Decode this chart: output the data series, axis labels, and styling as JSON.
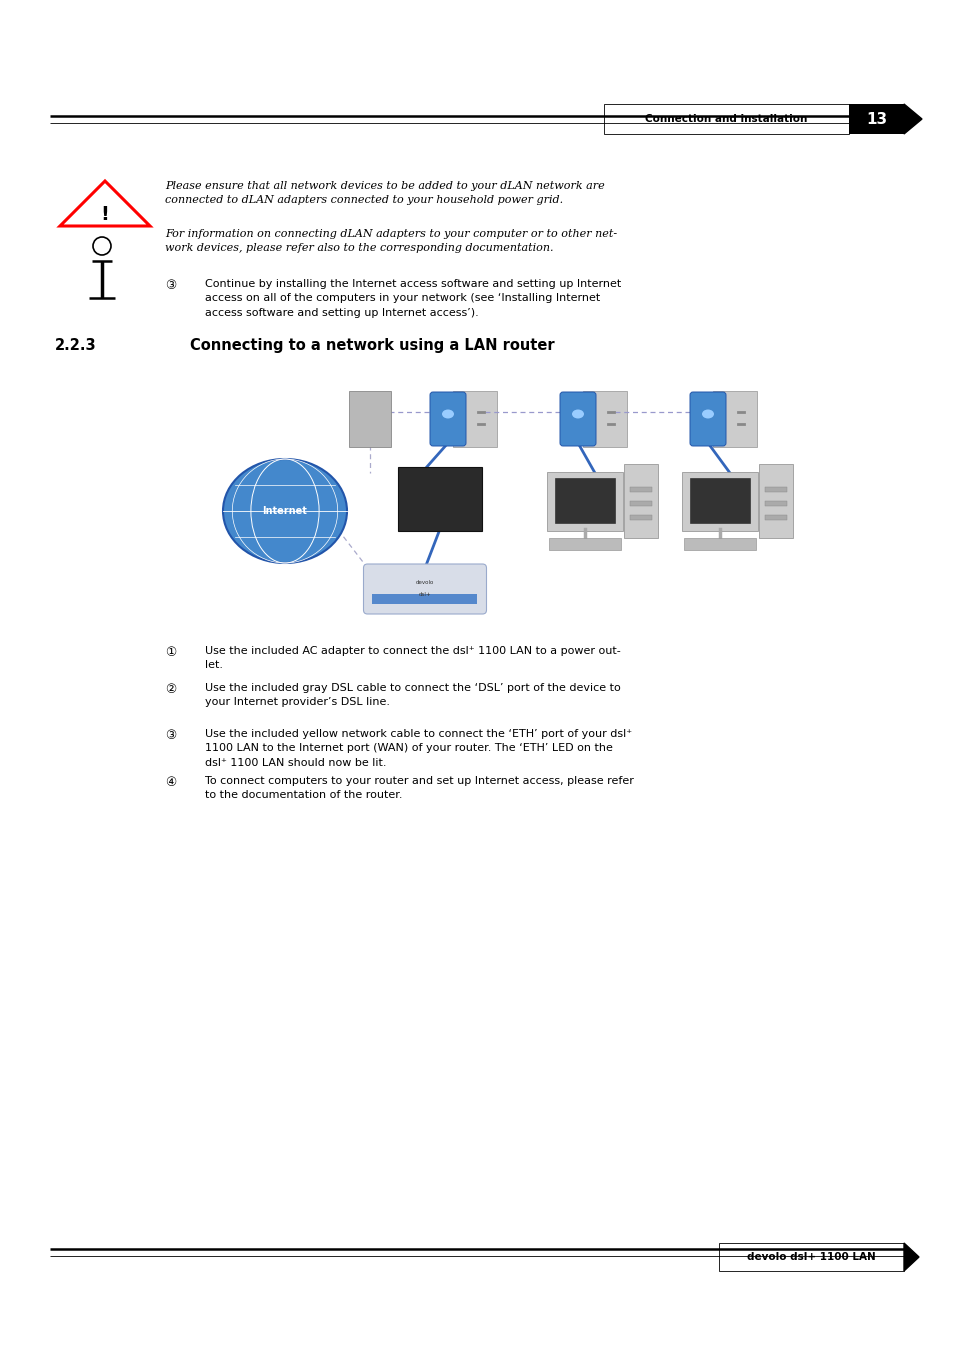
{
  "bg_color": "#ffffff",
  "page_width": 9.54,
  "page_height": 13.51,
  "header_text": "Connection and installation",
  "header_page": "13",
  "footer_text": "devolo dsl+ 1100 LAN",
  "section_num": "2.2.3",
  "section_title": "Connecting to a network using a LAN router",
  "warning_text": "Please ensure that all network devices to be added to your dLAN network are\nconnected to dLAN adapters connected to your household power grid.",
  "info_text": "For information on connecting dLAN adapters to your computer or to other net-\nwork devices, please refer also to the corresponding documentation.",
  "step7_text": "Continue by installing the Internet access software and setting up Internet\naccess on all of the computers in your network (see ‘Installing Internet\naccess software and setting up Internet access’).",
  "step1_text": "Use the included AC adapter to connect the dsl⁺ 1100 LAN to a power out-\nlet.",
  "step2_text": "Use the included gray DSL cable to connect the ‘DSL’ port of the device to\nyour Internet provider’s DSL line.",
  "step3_text": "Use the included yellow network cable to connect the ‘ETH’ port of your dsl⁺\n1100 LAN to the Internet port (WAN) of your router. The ‘ETH’ LED on the\ndsl⁺ 1100 LAN should now be lit.",
  "step4_text": "To connect computers to your router and set up Internet access, please refer\nto the documentation of the router.",
  "text_color": "#000000"
}
